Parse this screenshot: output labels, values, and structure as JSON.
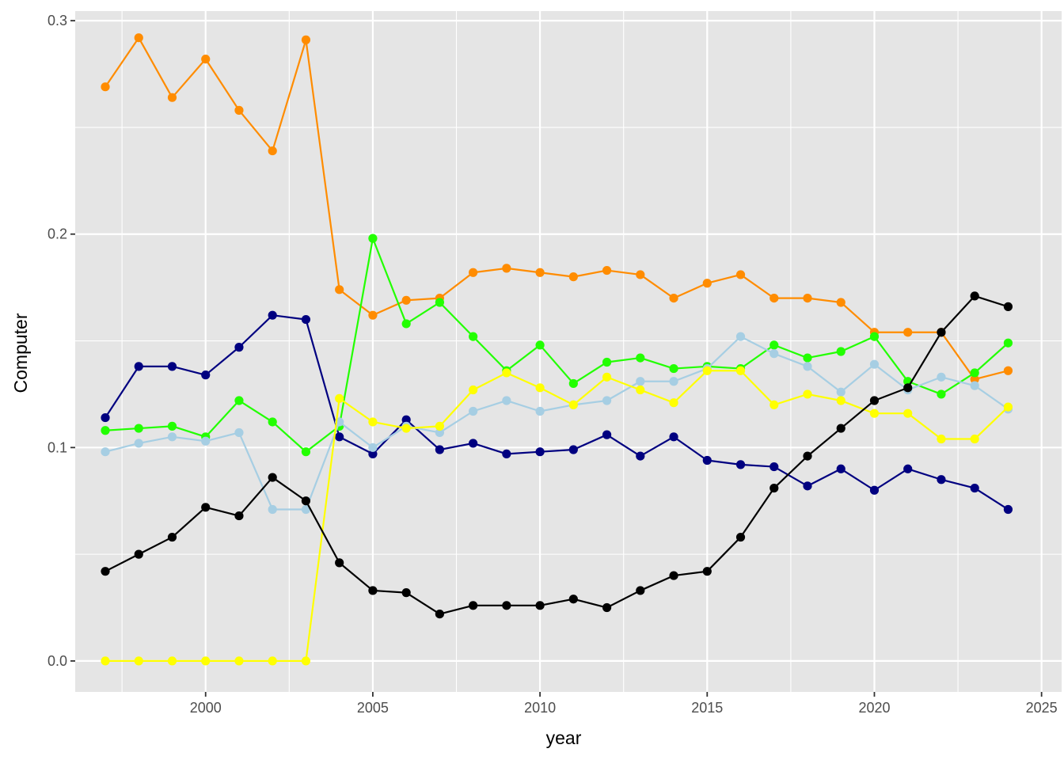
{
  "chart_data": {
    "type": "line",
    "title": "",
    "xlabel": "year",
    "ylabel": "Computer",
    "xlim": [
      1996.1,
      2025.6
    ],
    "ylim": [
      -0.0145,
      0.3045
    ],
    "x_ticks": [
      2000,
      2005,
      2010,
      2015,
      2020,
      2025
    ],
    "x_tick_labels": [
      "2000",
      "2005",
      "2010",
      "2015",
      "2020",
      "2025"
    ],
    "y_ticks": [
      0.0,
      0.1,
      0.2,
      0.3
    ],
    "y_tick_labels": [
      "0.0",
      "0.1",
      "0.2",
      "0.3"
    ],
    "grid": true,
    "legend": "none",
    "background": "#e5e5e5",
    "x": [
      1997,
      1998,
      1999,
      2000,
      2001,
      2002,
      2003,
      2004,
      2005,
      2006,
      2007,
      2008,
      2009,
      2010,
      2011,
      2012,
      2013,
      2014,
      2015,
      2016,
      2017,
      2018,
      2019,
      2020,
      2021,
      2022,
      2023,
      2024
    ],
    "series": [
      {
        "color": "#ff8c00",
        "values": [
          0.269,
          0.292,
          0.264,
          0.282,
          0.258,
          0.239,
          0.291,
          0.174,
          0.162,
          0.169,
          0.17,
          0.182,
          0.184,
          0.182,
          0.18,
          0.183,
          0.181,
          0.17,
          0.177,
          0.181,
          0.17,
          0.17,
          0.168,
          0.154,
          0.154,
          0.154,
          0.132,
          0.136
        ]
      },
      {
        "color": "#000080",
        "values": [
          0.114,
          0.138,
          0.138,
          0.134,
          0.147,
          0.162,
          0.16,
          0.105,
          0.097,
          0.113,
          0.099,
          0.102,
          0.097,
          0.098,
          0.099,
          0.106,
          0.096,
          0.105,
          0.094,
          0.092,
          0.091,
          0.082,
          0.09,
          0.08,
          0.09,
          0.085,
          0.081,
          0.071
        ]
      },
      {
        "color": "#22ff00",
        "values": [
          0.108,
          0.109,
          0.11,
          0.105,
          0.122,
          0.112,
          0.098,
          0.11,
          0.198,
          0.158,
          0.168,
          0.152,
          0.136,
          0.148,
          0.13,
          0.14,
          0.142,
          0.137,
          0.138,
          0.137,
          0.148,
          0.142,
          0.145,
          0.152,
          0.131,
          0.125,
          0.135,
          0.149
        ]
      },
      {
        "color": "#a6cee3",
        "values": [
          0.098,
          0.102,
          0.105,
          0.103,
          0.107,
          0.071,
          0.071,
          0.112,
          0.1,
          0.11,
          0.107,
          0.117,
          0.122,
          0.117,
          0.12,
          0.122,
          0.131,
          0.131,
          0.137,
          0.152,
          0.144,
          0.138,
          0.126,
          0.139,
          0.127,
          0.133,
          0.129,
          0.118
        ]
      },
      {
        "color": "#ffff00",
        "values": [
          0.0,
          0.0,
          0.0,
          0.0,
          0.0,
          0.0,
          0.0,
          0.123,
          0.112,
          0.109,
          0.11,
          0.127,
          0.135,
          0.128,
          0.12,
          0.133,
          0.127,
          0.121,
          0.136,
          0.136,
          0.12,
          0.125,
          0.122,
          0.116,
          0.116,
          0.104,
          0.104,
          0.119
        ]
      },
      {
        "color": "#000000",
        "values": [
          0.042,
          0.05,
          0.058,
          0.072,
          0.068,
          0.086,
          0.075,
          0.046,
          0.033,
          0.032,
          0.022,
          0.026,
          0.026,
          0.026,
          0.029,
          0.025,
          0.033,
          0.04,
          0.042,
          0.058,
          0.081,
          0.096,
          0.109,
          0.122,
          0.128,
          0.154,
          0.171,
          0.166
        ]
      }
    ]
  }
}
